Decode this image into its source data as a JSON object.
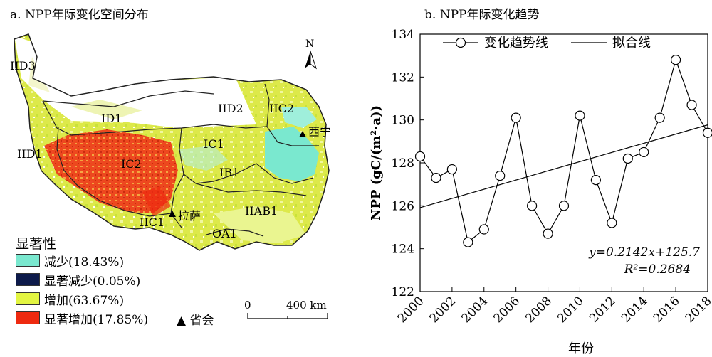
{
  "map": {
    "title": "a. NPP年际变化空间分布",
    "north_label": "N",
    "legend_title": "显著性",
    "legend": [
      {
        "label": "减少(18.43%)",
        "color": "#7ae8cf"
      },
      {
        "label": "显著减少(0.05%)",
        "color": "#0d1a4a"
      },
      {
        "label": "增加(63.67%)",
        "color": "#e3f542"
      },
      {
        "label": "显著增加(17.85%)",
        "color": "#ee2a10"
      }
    ],
    "capital_legend": "▲ 省会",
    "scale": {
      "start": "0",
      "end": "400 km"
    },
    "regions": [
      "IID3",
      "ID1",
      "IID2",
      "IIC2",
      "IID1",
      "IC2",
      "IC1",
      "IB1",
      "IIAB1",
      "IIC1",
      "OA1"
    ],
    "cities": [
      "西宁",
      "拉萨"
    ]
  },
  "chart_data": {
    "type": "line",
    "title": "b. NPP年际变化趋势",
    "xlabel": "年份",
    "ylabel": "NPP (gC/(m²·a))",
    "x": [
      2000,
      2001,
      2002,
      2003,
      2004,
      2005,
      2006,
      2007,
      2008,
      2009,
      2010,
      2011,
      2012,
      2013,
      2014,
      2015,
      2016,
      2017,
      2018
    ],
    "series": [
      {
        "name": "变化趋势线",
        "values": [
          128.3,
          127.3,
          127.7,
          124.3,
          124.9,
          127.4,
          130.1,
          126.0,
          124.7,
          126.0,
          130.2,
          127.2,
          125.2,
          128.2,
          128.5,
          130.1,
          132.8,
          130.7,
          129.4
        ]
      }
    ],
    "fit": {
      "name": "拟合线",
      "slope": 0.2142,
      "intercept": 125.7
    },
    "equation": "y=0.2142x+125.7",
    "r2": "R²=0.2684",
    "ylim": [
      122,
      134
    ],
    "xlim": [
      2000,
      2018
    ],
    "yticks": [
      122,
      124,
      126,
      128,
      130,
      132,
      134
    ],
    "xticks": [
      2000,
      2002,
      2004,
      2006,
      2008,
      2010,
      2012,
      2014,
      2016,
      2018
    ],
    "legend_position": "top"
  }
}
